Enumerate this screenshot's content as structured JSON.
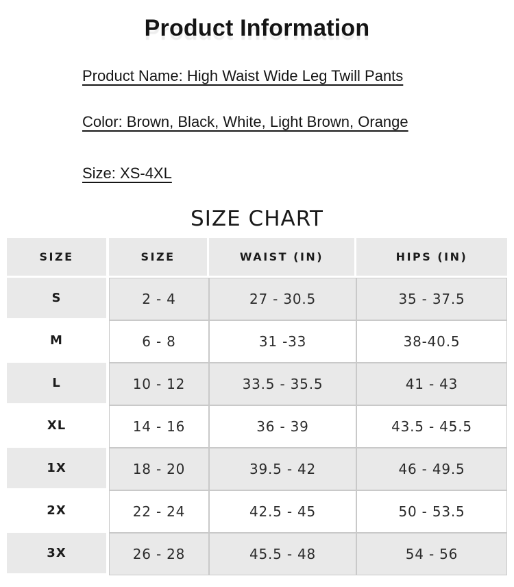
{
  "page": {
    "title": "Product Information",
    "info_lines": {
      "product_name": "Product Name: High Waist Wide Leg Twill Pants",
      "color": "Color: Brown, Black, White, Light Brown, Orange",
      "size": "Size: XS-4XL"
    },
    "chart_title": "SIZE CHART"
  },
  "size_chart": {
    "columns": [
      "SIZE",
      "SIZE",
      "WAIST (IN)",
      "HIPS (IN)"
    ],
    "rows": [
      {
        "label": "S",
        "size": "2 - 4",
        "waist": "27 - 30.5",
        "hips": "35 - 37.5"
      },
      {
        "label": "M",
        "size": "6 - 8",
        "waist": "31 -33",
        "hips": "38-40.5"
      },
      {
        "label": "L",
        "size": "10 - 12",
        "waist": "33.5 - 35.5",
        "hips": "41 - 43"
      },
      {
        "label": "XL",
        "size": "14 - 16",
        "waist": "36 - 39",
        "hips": "43.5 - 45.5"
      },
      {
        "label": "1X",
        "size": "18 - 20",
        "waist": "39.5 - 42",
        "hips": "46 - 49.5"
      },
      {
        "label": "2X",
        "size": "22 - 24",
        "waist": "42.5 - 45",
        "hips": "50 - 53.5"
      },
      {
        "label": "3X",
        "size": "26 - 28",
        "waist": "45.5 - 48",
        "hips": "54 - 56"
      }
    ]
  },
  "colors": {
    "cell_gray": "#e9e9e9",
    "border_gray": "#c9c9c9",
    "text": "#1c1c1c"
  }
}
